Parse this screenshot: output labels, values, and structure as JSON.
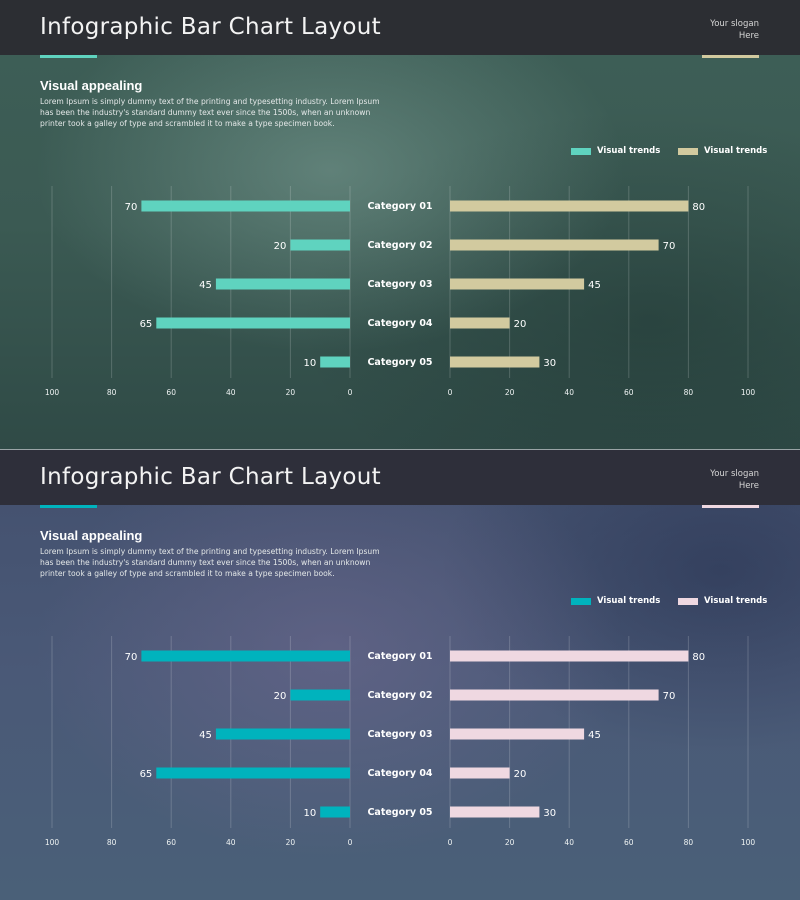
{
  "panels": [
    {
      "header": {
        "title": "Infographic Bar Chart Layout",
        "slogan_line1": "Your slogan",
        "slogan_line2": "Here"
      },
      "intro": {
        "heading": "Visual appealing",
        "text": "Lorem Ipsum is simply dummy text of the printing and typesetting industry. Lorem Ipsum has been the industry's standard dummy text ever since the 1500s, when an unknown printer took a galley of type and scrambled it to make a type specimen book."
      },
      "colors": {
        "accent": "#5fd3bf",
        "secondary": "#d2ca9f",
        "header_bg": "#2c2e33"
      },
      "chart_data": {
        "type": "bar",
        "orientation": "horizontal-butterfly",
        "categories": [
          "Category 01",
          "Category 02",
          "Category 03",
          "Category 04",
          "Category 05"
        ],
        "series": [
          {
            "name": "Visual trends",
            "side": "left",
            "color": "#5fd3bf",
            "values": [
              70,
              20,
              45,
              65,
              10
            ]
          },
          {
            "name": "Visual trends",
            "side": "right",
            "color": "#d2ca9f",
            "values": [
              80,
              70,
              45,
              20,
              30
            ]
          }
        ],
        "left_ticks": [
          "100",
          "80",
          "60",
          "40",
          "20",
          "0"
        ],
        "right_ticks": [
          "0",
          "20",
          "40",
          "60",
          "80",
          "100"
        ],
        "xlim": [
          0,
          100
        ],
        "grid": true,
        "legend": "top-right"
      }
    },
    {
      "header": {
        "title": "Infographic Bar Chart Layout",
        "slogan_line1": "Your slogan",
        "slogan_line2": "Here"
      },
      "intro": {
        "heading": "Visual appealing",
        "text": "Lorem Ipsum is simply dummy text of the printing and typesetting industry. Lorem Ipsum has been the industry's standard dummy text ever since the 1500s, when an unknown printer took a galley of type and scrambled it to make a type specimen book."
      },
      "colors": {
        "accent": "#00b3bd",
        "secondary": "#efd8e1",
        "header_bg": "#2e2f3a"
      },
      "chart_data": {
        "type": "bar",
        "orientation": "horizontal-butterfly",
        "categories": [
          "Category 01",
          "Category 02",
          "Category 03",
          "Category 04",
          "Category 05"
        ],
        "series": [
          {
            "name": "Visual trends",
            "side": "left",
            "color": "#00b3bd",
            "values": [
              70,
              20,
              45,
              65,
              10
            ]
          },
          {
            "name": "Visual trends",
            "side": "right",
            "color": "#efd8e1",
            "values": [
              80,
              70,
              45,
              20,
              30
            ]
          }
        ],
        "left_ticks": [
          "100",
          "80",
          "60",
          "40",
          "20",
          "0"
        ],
        "right_ticks": [
          "0",
          "20",
          "40",
          "60",
          "80",
          "100"
        ],
        "xlim": [
          0,
          100
        ],
        "grid": true,
        "legend": "top-right"
      }
    }
  ]
}
